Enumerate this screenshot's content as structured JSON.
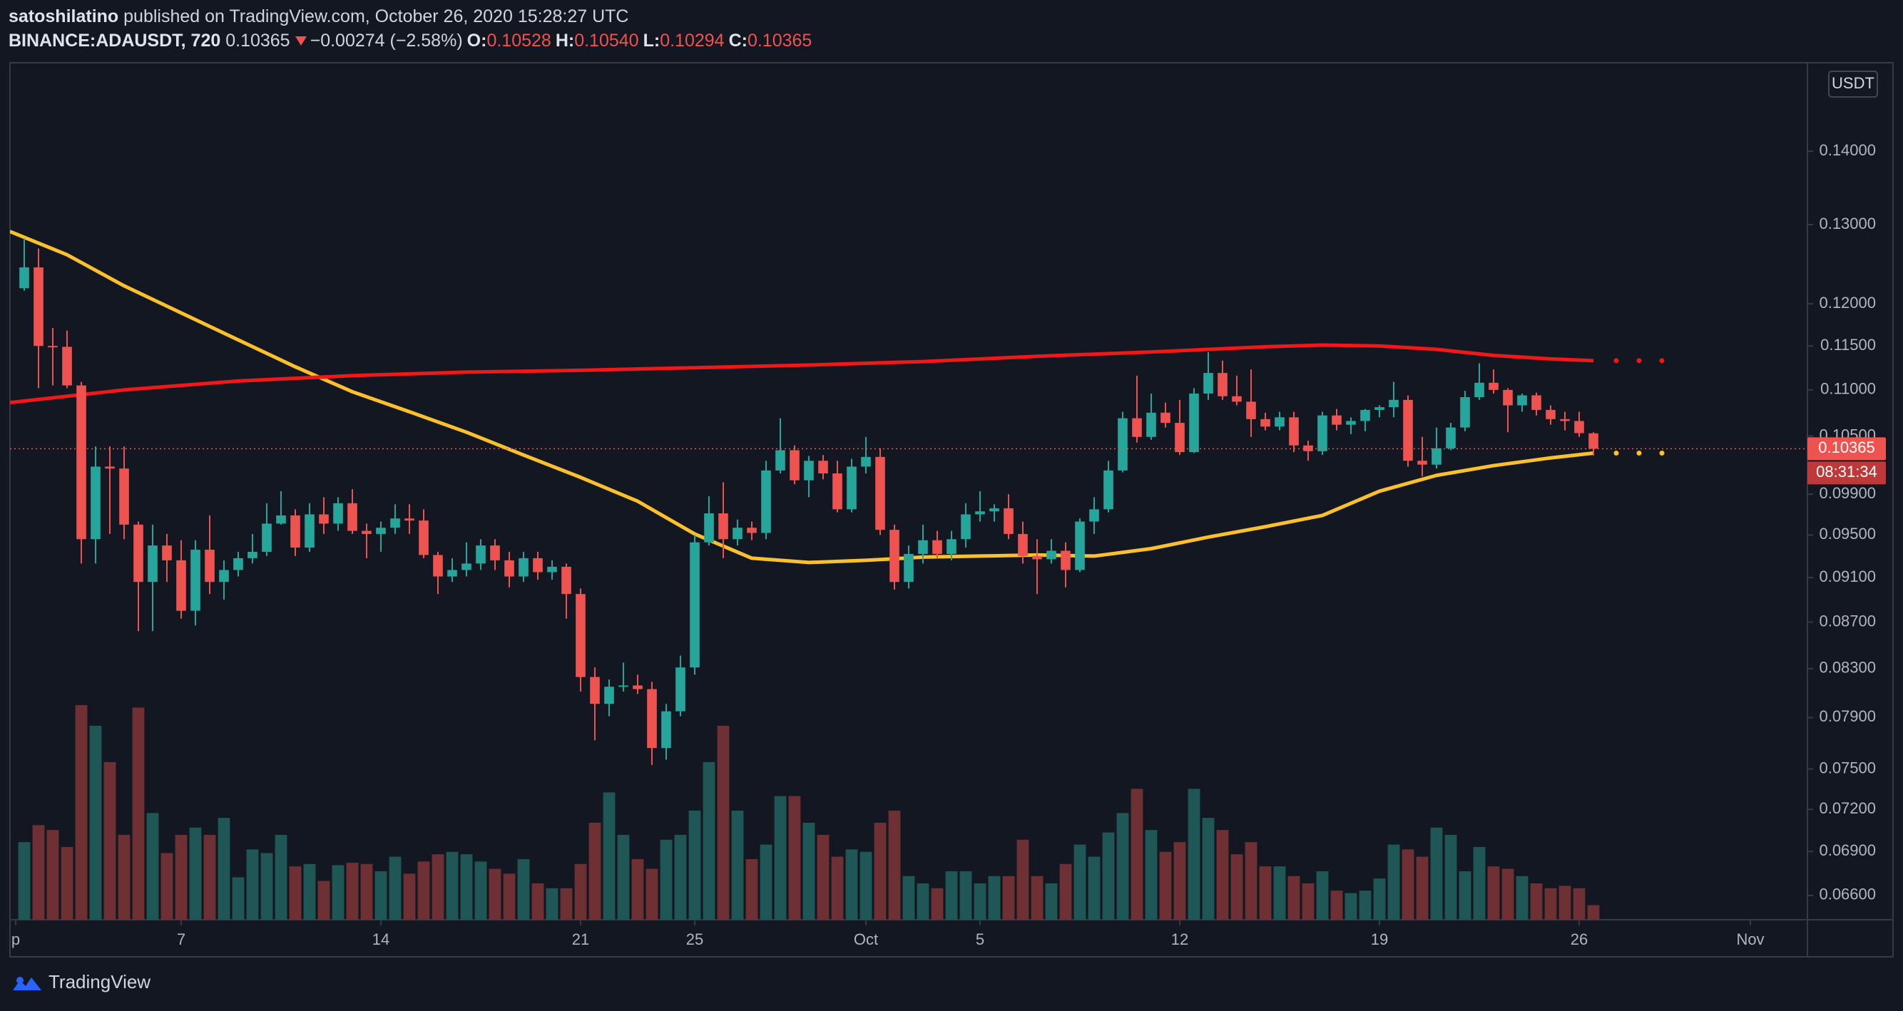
{
  "header": {
    "author": "satoshilatino",
    "published": "published on TradingView.com, October 26, 2020 15:28:27 UTC",
    "symbol": "BINANCE:ADAUSDT, 720",
    "last": "0.10365",
    "change": "−0.00274 (−2.58%)",
    "ohlc": [
      {
        "label": "O:",
        "value": "0.10528"
      },
      {
        "label": "H:",
        "value": "0.10540"
      },
      {
        "label": "L:",
        "value": "0.10294"
      },
      {
        "label": "C:",
        "value": "0.10365"
      }
    ]
  },
  "footer": {
    "brand": "TradingView"
  },
  "chart_data": {
    "type": "candlestick",
    "log_scale": true,
    "grid": false,
    "up_color": "#26a69a",
    "down_color": "#ef5350",
    "volume_up_color": "#1e5755",
    "volume_down_color": "#6f3033",
    "x": [
      "2020-09-01 12:00",
      "2020-09-02 00:00",
      "2020-09-02 12:00",
      "2020-09-03 00:00",
      "2020-09-03 12:00",
      "2020-09-04 00:00",
      "2020-09-04 12:00",
      "2020-09-05 00:00",
      "2020-09-05 12:00",
      "2020-09-06 00:00",
      "2020-09-06 12:00",
      "2020-09-07 00:00",
      "2020-09-07 12:00",
      "2020-09-08 00:00",
      "2020-09-08 12:00",
      "2020-09-09 00:00",
      "2020-09-09 12:00",
      "2020-09-10 00:00",
      "2020-09-10 12:00",
      "2020-09-11 00:00",
      "2020-09-11 12:00",
      "2020-09-12 00:00",
      "2020-09-12 12:00",
      "2020-09-13 00:00",
      "2020-09-13 12:00",
      "2020-09-14 00:00",
      "2020-09-14 12:00",
      "2020-09-15 00:00",
      "2020-09-15 12:00",
      "2020-09-16 00:00",
      "2020-09-16 12:00",
      "2020-09-17 00:00",
      "2020-09-17 12:00",
      "2020-09-18 00:00",
      "2020-09-18 12:00",
      "2020-09-19 00:00",
      "2020-09-19 12:00",
      "2020-09-20 00:00",
      "2020-09-20 12:00",
      "2020-09-21 00:00",
      "2020-09-21 12:00",
      "2020-09-22 00:00",
      "2020-09-22 12:00",
      "2020-09-23 00:00",
      "2020-09-23 12:00",
      "2020-09-24 00:00",
      "2020-09-24 12:00",
      "2020-09-25 00:00",
      "2020-09-25 12:00",
      "2020-09-26 00:00",
      "2020-09-26 12:00",
      "2020-09-27 00:00",
      "2020-09-27 12:00",
      "2020-09-28 00:00",
      "2020-09-28 12:00",
      "2020-09-29 00:00",
      "2020-09-29 12:00",
      "2020-09-30 00:00",
      "2020-09-30 12:00",
      "2020-10-01 00:00",
      "2020-10-01 12:00",
      "2020-10-02 00:00",
      "2020-10-02 12:00",
      "2020-10-03 00:00",
      "2020-10-03 12:00",
      "2020-10-04 00:00",
      "2020-10-04 12:00",
      "2020-10-05 00:00",
      "2020-10-05 12:00",
      "2020-10-06 00:00",
      "2020-10-06 12:00",
      "2020-10-07 00:00",
      "2020-10-07 12:00",
      "2020-10-08 00:00",
      "2020-10-08 12:00",
      "2020-10-09 00:00",
      "2020-10-09 12:00",
      "2020-10-10 00:00",
      "2020-10-10 12:00",
      "2020-10-11 00:00",
      "2020-10-11 12:00",
      "2020-10-12 00:00",
      "2020-10-12 12:00",
      "2020-10-13 00:00",
      "2020-10-13 12:00",
      "2020-10-14 00:00",
      "2020-10-14 12:00",
      "2020-10-15 00:00",
      "2020-10-15 12:00",
      "2020-10-16 00:00",
      "2020-10-16 12:00",
      "2020-10-17 00:00",
      "2020-10-17 12:00",
      "2020-10-18 00:00",
      "2020-10-18 12:00",
      "2020-10-19 00:00",
      "2020-10-19 12:00",
      "2020-10-20 00:00",
      "2020-10-20 12:00",
      "2020-10-21 00:00",
      "2020-10-21 12:00",
      "2020-10-22 00:00",
      "2020-10-22 12:00",
      "2020-10-23 00:00",
      "2020-10-23 12:00",
      "2020-10-24 00:00",
      "2020-10-24 12:00",
      "2020-10-25 00:00",
      "2020-10-25 12:00",
      "2020-10-26 00:00",
      "2020-10-26 12:00"
    ],
    "open": [
      0.1219,
      0.1245,
      0.115,
      0.1149,
      0.1105,
      0.0946,
      0.1018,
      0.1016,
      0.096,
      0.0906,
      0.094,
      0.0926,
      0.088,
      0.0936,
      0.0906,
      0.0917,
      0.0928,
      0.0934,
      0.0961,
      0.0969,
      0.0938,
      0.097,
      0.0961,
      0.0981,
      0.0954,
      0.0951,
      0.0957,
      0.0966,
      0.0964,
      0.0931,
      0.0911,
      0.0917,
      0.0923,
      0.094,
      0.0926,
      0.0911,
      0.0928,
      0.0915,
      0.092,
      0.0895,
      0.0823,
      0.0801,
      0.0815,
      0.0816,
      0.0813,
      0.0766,
      0.0795,
      0.0831,
      0.0943,
      0.0971,
      0.0946,
      0.0957,
      0.0952,
      0.1014,
      0.1035,
      0.1004,
      0.1024,
      0.1011,
      0.0975,
      0.1018,
      0.1028,
      0.0955,
      0.0906,
      0.0932,
      0.0945,
      0.0932,
      0.0946,
      0.097,
      0.0973,
      0.0976,
      0.0951,
      0.093,
      0.0927,
      0.0935,
      0.0917,
      0.0963,
      0.0975,
      0.1014,
      0.1069,
      0.1049,
      0.1075,
      0.1064,
      0.1033,
      0.1096,
      0.1119,
      0.1093,
      0.1087,
      0.1068,
      0.106,
      0.107,
      0.104,
      0.1034,
      0.1072,
      0.1062,
      0.1066,
      0.1078,
      0.1081,
      0.1089,
      0.1024,
      0.102,
      0.1037,
      0.1059,
      0.1092,
      0.1108,
      0.11,
      0.1083,
      0.1094,
      0.1078,
      0.1068,
      0.1066,
      0.10528
    ],
    "high": [
      0.1282,
      0.1269,
      0.1171,
      0.1168,
      0.1109,
      0.1039,
      0.1039,
      0.1039,
      0.0963,
      0.096,
      0.0951,
      0.0945,
      0.0945,
      0.0969,
      0.0926,
      0.0934,
      0.0951,
      0.0981,
      0.0993,
      0.0975,
      0.0981,
      0.0987,
      0.0987,
      0.0995,
      0.0961,
      0.0963,
      0.098,
      0.098,
      0.0975,
      0.0934,
      0.0928,
      0.0943,
      0.0946,
      0.0946,
      0.0934,
      0.0934,
      0.0934,
      0.0926,
      0.0923,
      0.09,
      0.0831,
      0.0821,
      0.0835,
      0.0825,
      0.0819,
      0.0801,
      0.0841,
      0.095,
      0.0988,
      0.1002,
      0.0965,
      0.0963,
      0.1024,
      0.1069,
      0.104,
      0.1029,
      0.103,
      0.1024,
      0.1026,
      0.1049,
      0.1037,
      0.096,
      0.094,
      0.096,
      0.0954,
      0.0954,
      0.0981,
      0.0993,
      0.098,
      0.099,
      0.0963,
      0.0946,
      0.0946,
      0.0943,
      0.0966,
      0.0987,
      0.1024,
      0.1076,
      0.1116,
      0.1096,
      0.1086,
      0.1089,
      0.1102,
      0.1143,
      0.1133,
      0.1116,
      0.1123,
      0.1075,
      0.1076,
      0.1076,
      0.1045,
      0.1076,
      0.1079,
      0.107,
      0.1079,
      0.1083,
      0.1109,
      0.1094,
      0.1049,
      0.1059,
      0.1064,
      0.1099,
      0.113,
      0.1123,
      0.1102,
      0.1096,
      0.1097,
      0.1083,
      0.1076,
      0.1076,
      0.1054
    ],
    "low": [
      0.1216,
      0.1102,
      0.1105,
      0.1102,
      0.0923,
      0.0923,
      0.0951,
      0.0946,
      0.0862,
      0.0862,
      0.0906,
      0.0873,
      0.0867,
      0.0895,
      0.089,
      0.0911,
      0.0923,
      0.093,
      0.096,
      0.093,
      0.0934,
      0.0951,
      0.0954,
      0.0951,
      0.0928,
      0.0934,
      0.0951,
      0.0951,
      0.0928,
      0.0895,
      0.0906,
      0.0911,
      0.0917,
      0.0917,
      0.0901,
      0.0906,
      0.0908,
      0.0908,
      0.0873,
      0.0811,
      0.0772,
      0.0791,
      0.0811,
      0.0809,
      0.0753,
      0.0757,
      0.0791,
      0.0825,
      0.094,
      0.0928,
      0.094,
      0.0945,
      0.0946,
      0.1011,
      0.1,
      0.0987,
      0.1005,
      0.0972,
      0.0972,
      0.1011,
      0.095,
      0.0899,
      0.09,
      0.0923,
      0.0928,
      0.0926,
      0.0938,
      0.0963,
      0.0963,
      0.0946,
      0.0923,
      0.0895,
      0.0923,
      0.0901,
      0.0915,
      0.0951,
      0.0972,
      0.1012,
      0.1043,
      0.1046,
      0.1059,
      0.103,
      0.1032,
      0.1089,
      0.1089,
      0.1083,
      0.1049,
      0.1056,
      0.1056,
      0.1033,
      0.1024,
      0.103,
      0.1056,
      0.1052,
      0.1055,
      0.107,
      0.107,
      0.1018,
      0.1008,
      0.1016,
      0.1035,
      0.1055,
      0.1089,
      0.1096,
      0.1054,
      0.1076,
      0.1072,
      0.1062,
      0.1056,
      0.1049,
      0.10294
    ],
    "close": [
      0.1245,
      0.115,
      0.1149,
      0.1105,
      0.0946,
      0.1018,
      0.1016,
      0.096,
      0.0906,
      0.094,
      0.0926,
      0.088,
      0.0936,
      0.0906,
      0.0917,
      0.0928,
      0.0934,
      0.0961,
      0.0969,
      0.0938,
      0.097,
      0.0961,
      0.0981,
      0.0954,
      0.0951,
      0.0957,
      0.0966,
      0.0964,
      0.0931,
      0.0911,
      0.0917,
      0.0923,
      0.094,
      0.0926,
      0.0911,
      0.0928,
      0.0915,
      0.092,
      0.0895,
      0.0823,
      0.0801,
      0.0815,
      0.0816,
      0.0813,
      0.0766,
      0.0795,
      0.0831,
      0.0943,
      0.0971,
      0.0946,
      0.0957,
      0.0952,
      0.1014,
      0.1035,
      0.1004,
      0.1024,
      0.1011,
      0.0975,
      0.1018,
      0.1028,
      0.0955,
      0.0906,
      0.0932,
      0.0945,
      0.0932,
      0.0946,
      0.097,
      0.0973,
      0.0976,
      0.0951,
      0.093,
      0.0927,
      0.0935,
      0.0917,
      0.0963,
      0.0975,
      0.1014,
      0.1069,
      0.1049,
      0.1075,
      0.1064,
      0.1033,
      0.1096,
      0.1119,
      0.1093,
      0.1087,
      0.1068,
      0.106,
      0.107,
      0.104,
      0.1034,
      0.1072,
      0.1062,
      0.1066,
      0.1078,
      0.1081,
      0.1089,
      0.1024,
      0.102,
      0.1037,
      0.1059,
      0.1092,
      0.1108,
      0.11,
      0.1083,
      0.1094,
      0.1078,
      0.1068,
      0.1066,
      0.1053,
      0.10365
    ],
    "volume": [
      64,
      78,
      74,
      60,
      177,
      160,
      130,
      70,
      175,
      88,
      55,
      70,
      76,
      70,
      84,
      35,
      58,
      55,
      70,
      44,
      46,
      32,
      45,
      47,
      46,
      40,
      52,
      38,
      48,
      54,
      56,
      54,
      48,
      42,
      38,
      50,
      30,
      26,
      26,
      46,
      80,
      105,
      70,
      50,
      42,
      66,
      70,
      90,
      130,
      160,
      90,
      50,
      62,
      102,
      102,
      80,
      70,
      52,
      58,
      56,
      80,
      90,
      36,
      30,
      26,
      40,
      40,
      30,
      36,
      36,
      66,
      36,
      30,
      46,
      62,
      52,
      72,
      88,
      108,
      74,
      56,
      64,
      108,
      84,
      74,
      54,
      64,
      44,
      44,
      36,
      30,
      40,
      24,
      22,
      24,
      34,
      62,
      58,
      52,
      76,
      70,
      40,
      60,
      44,
      42,
      36,
      30,
      26,
      28,
      26,
      12
    ],
    "moving_averages": [
      {
        "color": "#fbc02d",
        "x": [
          "2020-09-01",
          "2020-09-03",
          "2020-09-05",
          "2020-09-07",
          "2020-09-09",
          "2020-09-11",
          "2020-09-13",
          "2020-09-15",
          "2020-09-17",
          "2020-09-19",
          "2020-09-21",
          "2020-09-23",
          "2020-09-25",
          "2020-09-27",
          "2020-09-29",
          "2020-10-01",
          "2020-10-03",
          "2020-10-05",
          "2020-10-07",
          "2020-10-09",
          "2020-10-11",
          "2020-10-13",
          "2020-10-15",
          "2020-10-17",
          "2020-10-19",
          "2020-10-21",
          "2020-10-23",
          "2020-10-25",
          "2020-10-26 12:00"
        ],
        "values": [
          0.1291,
          0.1261,
          0.1222,
          0.1189,
          0.1157,
          0.1126,
          0.1098,
          0.1076,
          0.1054,
          0.103,
          0.1007,
          0.0983,
          0.0951,
          0.0928,
          0.0924,
          0.0926,
          0.0929,
          0.093,
          0.0931,
          0.093,
          0.0937,
          0.0948,
          0.0958,
          0.0969,
          0.0993,
          0.1009,
          0.1019,
          0.1027,
          0.1032
        ]
      },
      {
        "color": "#f01818",
        "x": [
          "2020-09-01",
          "2020-09-05",
          "2020-09-09",
          "2020-09-13",
          "2020-09-17",
          "2020-09-21",
          "2020-09-25",
          "2020-09-29",
          "2020-10-03",
          "2020-10-07",
          "2020-10-11",
          "2020-10-15",
          "2020-10-17",
          "2020-10-19",
          "2020-10-21",
          "2020-10-23",
          "2020-10-25",
          "2020-10-26 12:00"
        ],
        "values": [
          0.1086,
          0.11,
          0.111,
          0.1116,
          0.112,
          0.1122,
          0.1125,
          0.1128,
          0.1132,
          0.1138,
          0.1143,
          0.1149,
          0.1151,
          0.115,
          0.1146,
          0.1139,
          0.1135,
          0.1133
        ]
      }
    ],
    "xlim": [
      "2020-09-01 00:00",
      "2020-11-03 00:00"
    ],
    "xticks": [
      {
        "value": "2020-09-01",
        "label": "p"
      },
      {
        "value": "2020-09-07",
        "label": "7"
      },
      {
        "value": "2020-09-14",
        "label": "14"
      },
      {
        "value": "2020-09-21",
        "label": "21"
      },
      {
        "value": "2020-09-25",
        "label": "25"
      },
      {
        "value": "2020-10-01",
        "label": "Oct"
      },
      {
        "value": "2020-10-05",
        "label": "5"
      },
      {
        "value": "2020-10-12",
        "label": "12"
      },
      {
        "value": "2020-10-19",
        "label": "19"
      },
      {
        "value": "2020-10-26",
        "label": "26"
      },
      {
        "value": "2020-11-01",
        "label": "Nov"
      }
    ],
    "ylim": [
      0.0644,
      0.1531
    ],
    "yticks": [
      {
        "value": 0.066,
        "label": "0.06600"
      },
      {
        "value": 0.069,
        "label": "0.06900"
      },
      {
        "value": 0.072,
        "label": "0.07200"
      },
      {
        "value": 0.075,
        "label": "0.07500"
      },
      {
        "value": 0.079,
        "label": "0.07900"
      },
      {
        "value": 0.083,
        "label": "0.08300"
      },
      {
        "value": 0.087,
        "label": "0.08700"
      },
      {
        "value": 0.091,
        "label": "0.09100"
      },
      {
        "value": 0.095,
        "label": "0.09500"
      },
      {
        "value": 0.099,
        "label": "0.09900"
      },
      {
        "value": 0.105,
        "label": "0.10500"
      },
      {
        "value": 0.11,
        "label": "0.11000"
      },
      {
        "value": 0.115,
        "label": "0.11500"
      },
      {
        "value": 0.12,
        "label": "0.12000"
      },
      {
        "value": 0.13,
        "label": "0.13000"
      },
      {
        "value": 0.14,
        "label": "0.14000"
      }
    ],
    "last_price": {
      "value": 0.10365,
      "label": "0.10365"
    },
    "countdown": "08:31:34",
    "currency": "USDT"
  }
}
